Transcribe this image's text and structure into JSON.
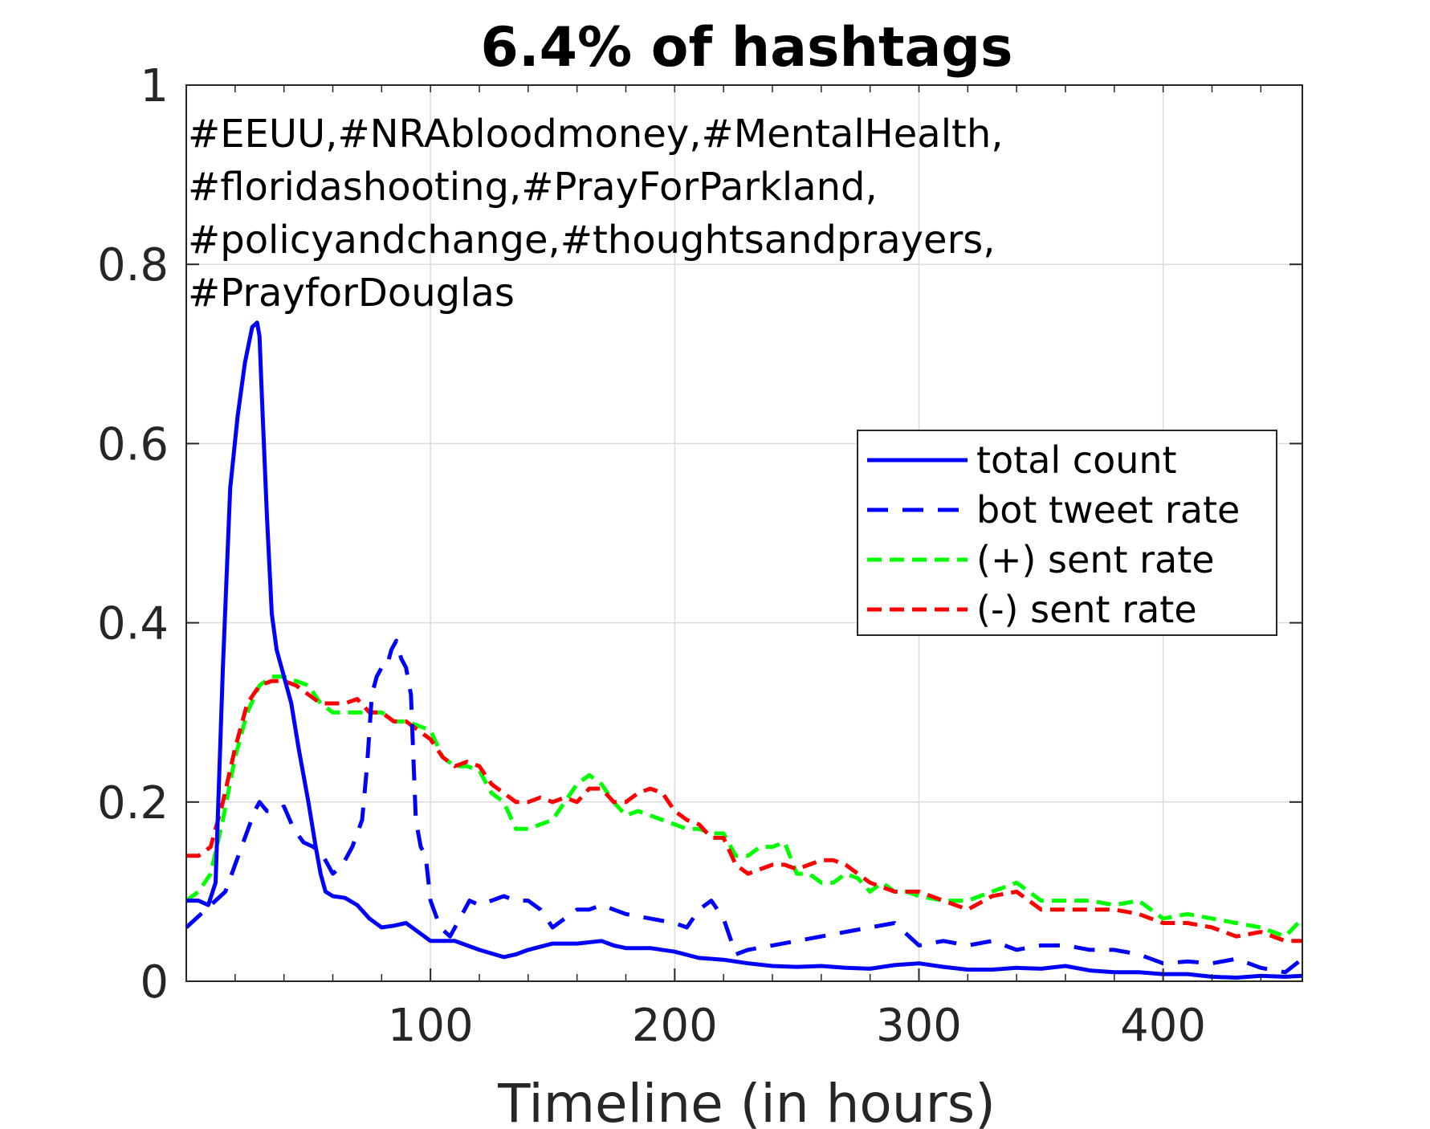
{
  "chart_data": {
    "type": "line",
    "title": "6.4% of hashtags",
    "xlabel": "Timeline (in hours)",
    "ylabel": "",
    "xlim": [
      0,
      457
    ],
    "ylim": [
      0,
      1
    ],
    "xticks": [
      100,
      200,
      300,
      400
    ],
    "xtick_labels": [
      "100",
      "200",
      "300",
      "400"
    ],
    "yticks": [
      0,
      0.2,
      0.4,
      0.6,
      0.8,
      1
    ],
    "ytick_labels": [
      "0",
      "0.2",
      "0.4",
      "0.6",
      "0.8",
      "1"
    ],
    "grid": true,
    "legend_position": "right-center",
    "annotation": [
      "#EEUU,#NRAbloodmoney,#MentalHealth,",
      "#floridashooting,#PrayForParkland,",
      "#policyandchange,#thoughtsandprayers,",
      "#PrayforDouglas"
    ],
    "series": [
      {
        "name": "total count",
        "color": "#0000ff",
        "style": "solid",
        "x": [
          0,
          5,
          9,
          12,
          15,
          18,
          21,
          24,
          27,
          29,
          30,
          31,
          33,
          35,
          37,
          40,
          43,
          46,
          50,
          53,
          55,
          57,
          60,
          65,
          70,
          75,
          80,
          85,
          90,
          95,
          100,
          105,
          110,
          115,
          120,
          130,
          135,
          140,
          150,
          160,
          170,
          175,
          180,
          190,
          200,
          210,
          220,
          230,
          240,
          250,
          260,
          270,
          280,
          290,
          300,
          310,
          320,
          330,
          340,
          350,
          360,
          370,
          380,
          390,
          400,
          410,
          420,
          430,
          440,
          450,
          457
        ],
        "y": [
          0.09,
          0.09,
          0.085,
          0.11,
          0.35,
          0.55,
          0.63,
          0.69,
          0.73,
          0.735,
          0.72,
          0.65,
          0.52,
          0.41,
          0.37,
          0.34,
          0.31,
          0.26,
          0.2,
          0.15,
          0.12,
          0.1,
          0.095,
          0.093,
          0.085,
          0.07,
          0.06,
          0.062,
          0.065,
          0.055,
          0.045,
          0.045,
          0.045,
          0.04,
          0.035,
          0.027,
          0.03,
          0.035,
          0.042,
          0.042,
          0.045,
          0.04,
          0.037,
          0.037,
          0.033,
          0.026,
          0.024,
          0.02,
          0.017,
          0.016,
          0.017,
          0.015,
          0.014,
          0.018,
          0.02,
          0.016,
          0.013,
          0.013,
          0.015,
          0.014,
          0.017,
          0.012,
          0.01,
          0.01,
          0.008,
          0.008,
          0.005,
          0.004,
          0.006,
          0.005,
          0.006
        ]
      },
      {
        "name": "bot tweet rate",
        "color": "#0000ff",
        "style": "dashed",
        "x": [
          0,
          4,
          8,
          12,
          16,
          20,
          24,
          28,
          30,
          33,
          36,
          40,
          44,
          48,
          52,
          56,
          60,
          64,
          68,
          72,
          74,
          76,
          78,
          80,
          82,
          84,
          86,
          88,
          90,
          92,
          94,
          96,
          98,
          100,
          104,
          108,
          112,
          116,
          120,
          125,
          130,
          135,
          140,
          145,
          150,
          155,
          160,
          165,
          170,
          180,
          190,
          200,
          205,
          210,
          215,
          220,
          225,
          230,
          240,
          250,
          260,
          270,
          280,
          290,
          300,
          310,
          320,
          330,
          340,
          350,
          360,
          370,
          380,
          390,
          400,
          410,
          420,
          430,
          440,
          450,
          457
        ],
        "y": [
          0.06,
          0.07,
          0.08,
          0.09,
          0.1,
          0.13,
          0.16,
          0.19,
          0.2,
          0.19,
          0.19,
          0.195,
          0.17,
          0.155,
          0.15,
          0.14,
          0.12,
          0.13,
          0.15,
          0.18,
          0.24,
          0.32,
          0.34,
          0.35,
          0.35,
          0.37,
          0.38,
          0.36,
          0.35,
          0.32,
          0.18,
          0.15,
          0.14,
          0.09,
          0.06,
          0.05,
          0.07,
          0.09,
          0.085,
          0.09,
          0.095,
          0.09,
          0.09,
          0.08,
          0.06,
          0.07,
          0.08,
          0.08,
          0.085,
          0.075,
          0.07,
          0.065,
          0.06,
          0.08,
          0.09,
          0.07,
          0.03,
          0.035,
          0.04,
          0.045,
          0.05,
          0.055,
          0.06,
          0.065,
          0.04,
          0.045,
          0.04,
          0.045,
          0.035,
          0.04,
          0.04,
          0.035,
          0.035,
          0.03,
          0.02,
          0.022,
          0.02,
          0.025,
          0.015,
          0.01,
          0.025
        ]
      },
      {
        "name": "(+) sent rate",
        "color": "#00ff00",
        "style": "dashed",
        "x": [
          0,
          5,
          10,
          15,
          20,
          25,
          30,
          35,
          40,
          45,
          50,
          55,
          60,
          65,
          70,
          75,
          80,
          85,
          90,
          95,
          100,
          105,
          110,
          115,
          120,
          125,
          130,
          135,
          140,
          145,
          150,
          155,
          160,
          165,
          170,
          175,
          180,
          185,
          190,
          195,
          200,
          205,
          210,
          215,
          220,
          225,
          230,
          235,
          240,
          245,
          250,
          255,
          260,
          265,
          270,
          275,
          280,
          285,
          290,
          295,
          300,
          310,
          320,
          330,
          340,
          350,
          360,
          370,
          380,
          390,
          400,
          410,
          420,
          430,
          440,
          450,
          457
        ],
        "y": [
          0.09,
          0.1,
          0.12,
          0.18,
          0.25,
          0.3,
          0.33,
          0.34,
          0.34,
          0.335,
          0.33,
          0.31,
          0.3,
          0.3,
          0.3,
          0.3,
          0.3,
          0.29,
          0.29,
          0.285,
          0.28,
          0.25,
          0.24,
          0.24,
          0.235,
          0.21,
          0.2,
          0.17,
          0.17,
          0.175,
          0.18,
          0.2,
          0.22,
          0.23,
          0.22,
          0.2,
          0.185,
          0.19,
          0.185,
          0.18,
          0.175,
          0.17,
          0.17,
          0.165,
          0.165,
          0.14,
          0.14,
          0.15,
          0.15,
          0.155,
          0.12,
          0.12,
          0.11,
          0.11,
          0.12,
          0.115,
          0.1,
          0.11,
          0.1,
          0.1,
          0.095,
          0.09,
          0.09,
          0.1,
          0.11,
          0.09,
          0.09,
          0.09,
          0.085,
          0.09,
          0.07,
          0.075,
          0.07,
          0.065,
          0.06,
          0.05,
          0.07
        ]
      },
      {
        "name": "(-) sent rate",
        "color": "#ff0000",
        "style": "dashed",
        "x": [
          0,
          5,
          10,
          15,
          20,
          25,
          30,
          35,
          40,
          45,
          50,
          55,
          60,
          65,
          70,
          75,
          80,
          85,
          90,
          95,
          100,
          105,
          110,
          115,
          120,
          125,
          130,
          135,
          140,
          145,
          150,
          155,
          160,
          165,
          170,
          175,
          180,
          185,
          190,
          195,
          200,
          205,
          210,
          215,
          220,
          225,
          230,
          235,
          240,
          245,
          250,
          255,
          260,
          265,
          270,
          275,
          280,
          285,
          290,
          295,
          300,
          310,
          320,
          330,
          340,
          350,
          360,
          370,
          380,
          390,
          400,
          410,
          420,
          430,
          440,
          450,
          457
        ],
        "y": [
          0.14,
          0.14,
          0.15,
          0.2,
          0.26,
          0.31,
          0.33,
          0.335,
          0.335,
          0.33,
          0.32,
          0.31,
          0.31,
          0.31,
          0.315,
          0.3,
          0.3,
          0.29,
          0.29,
          0.28,
          0.27,
          0.25,
          0.24,
          0.245,
          0.24,
          0.22,
          0.21,
          0.2,
          0.2,
          0.205,
          0.2,
          0.205,
          0.2,
          0.215,
          0.215,
          0.2,
          0.2,
          0.21,
          0.215,
          0.21,
          0.19,
          0.18,
          0.175,
          0.16,
          0.16,
          0.13,
          0.12,
          0.125,
          0.13,
          0.13,
          0.125,
          0.13,
          0.135,
          0.135,
          0.13,
          0.12,
          0.11,
          0.105,
          0.1,
          0.1,
          0.1,
          0.09,
          0.08,
          0.095,
          0.1,
          0.08,
          0.08,
          0.08,
          0.08,
          0.075,
          0.065,
          0.065,
          0.06,
          0.05,
          0.055,
          0.045,
          0.045
        ]
      }
    ]
  }
}
